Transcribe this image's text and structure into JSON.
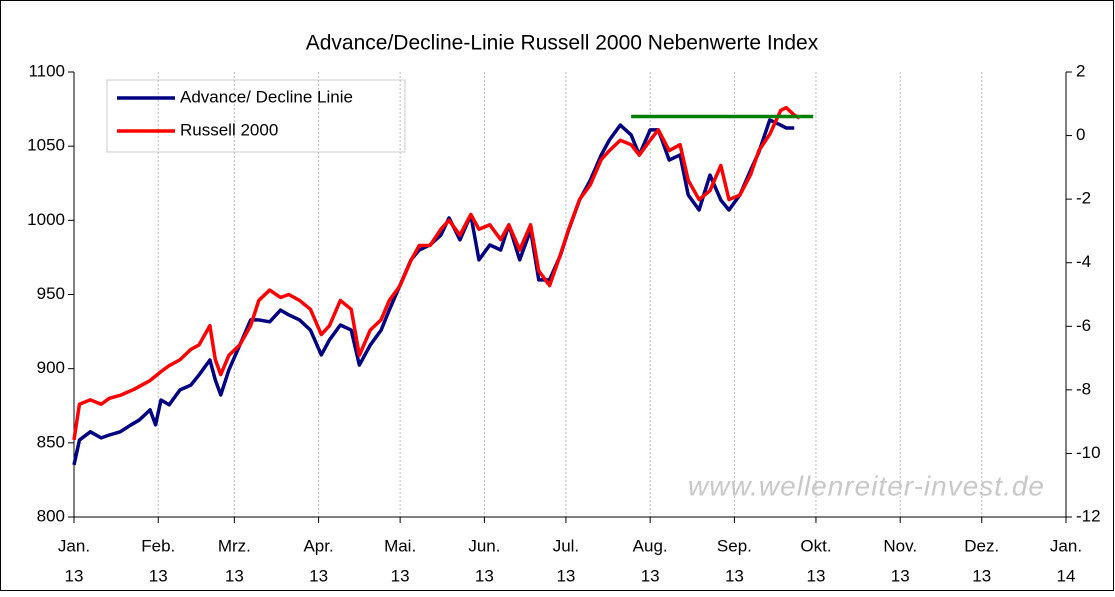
{
  "chart_data": {
    "type": "line",
    "title": "Advance/Decline-Linie Russell 2000 Nebenwerte Index",
    "watermark": "www.wellenreiter-invest.de",
    "xlim": [
      0,
      365
    ],
    "xticks": [
      {
        "value": 0,
        "label": [
          "Jan.",
          "13"
        ]
      },
      {
        "value": 31,
        "label": [
          "Feb.",
          "13"
        ]
      },
      {
        "value": 59,
        "label": [
          "Mrz.",
          "13"
        ]
      },
      {
        "value": 90,
        "label": [
          "Apr.",
          "13"
        ]
      },
      {
        "value": 120,
        "label": [
          "Mai.",
          "13"
        ]
      },
      {
        "value": 151,
        "label": [
          "Jun.",
          "13"
        ]
      },
      {
        "value": 181,
        "label": [
          "Jul.",
          "13"
        ]
      },
      {
        "value": 212,
        "label": [
          "Aug.",
          "13"
        ]
      },
      {
        "value": 243,
        "label": [
          "Sep.",
          "13"
        ]
      },
      {
        "value": 273,
        "label": [
          "Okt.",
          "13"
        ]
      },
      {
        "value": 304,
        "label": [
          "Nov.",
          "13"
        ]
      },
      {
        "value": 334,
        "label": [
          "Dez.",
          "13"
        ]
      },
      {
        "value": 365,
        "label": [
          "Jan.",
          "14"
        ]
      }
    ],
    "ylim": [
      800,
      1100
    ],
    "yticks": [
      800,
      850,
      900,
      950,
      1000,
      1050,
      1100
    ],
    "y2lim": [
      -12,
      2
    ],
    "y2ticks": [
      -12,
      -10,
      -8,
      -6,
      -4,
      -2,
      0,
      2
    ],
    "grid": "x",
    "legend": "top-left",
    "series": [
      {
        "name": "Advance/ Decline Linie",
        "color": "#000080",
        "axis": "y2",
        "x": [
          0,
          2,
          6,
          10,
          13,
          17,
          21,
          24,
          28,
          30,
          32,
          35,
          39,
          43,
          46,
          50,
          52,
          54,
          57,
          61,
          65,
          68,
          72,
          76,
          79,
          83,
          87,
          91,
          94,
          98,
          102,
          105,
          109,
          113,
          116,
          120,
          124,
          127,
          131,
          135,
          138,
          142,
          146,
          149,
          153,
          157,
          160,
          164,
          168,
          171,
          175,
          179,
          182,
          186,
          190,
          194,
          197,
          201,
          205,
          208,
          212,
          215,
          219,
          223,
          226,
          230,
          234,
          238,
          241,
          245,
          249,
          252,
          256,
          260,
          262,
          265
        ],
        "values": [
          -10.36,
          -9.58,
          -9.32,
          -9.51,
          -9.42,
          -9.32,
          -9.1,
          -8.95,
          -8.63,
          -9.1,
          -8.32,
          -8.47,
          -8.0,
          -7.85,
          -7.53,
          -7.06,
          -7.69,
          -8.16,
          -7.37,
          -6.59,
          -5.8,
          -5.8,
          -5.86,
          -5.49,
          -5.64,
          -5.8,
          -6.12,
          -6.9,
          -6.43,
          -5.96,
          -6.12,
          -7.22,
          -6.59,
          -6.12,
          -5.49,
          -4.7,
          -3.91,
          -3.6,
          -3.44,
          -3.13,
          -2.59,
          -3.28,
          -2.5,
          -3.91,
          -3.44,
          -3.6,
          -2.81,
          -3.91,
          -2.97,
          -4.54,
          -4.54,
          -3.76,
          -2.97,
          -2.03,
          -1.4,
          -0.61,
          -0.14,
          0.33,
          0.02,
          -0.61,
          0.18,
          0.18,
          -0.77,
          -0.61,
          -1.87,
          -2.34,
          -1.24,
          -2.03,
          -2.34,
          -1.87,
          -1.08,
          -0.52,
          0.49,
          0.33,
          0.24,
          0.24
        ]
      },
      {
        "name": "Russell 2000",
        "color": "#ff0000",
        "x": [
          0,
          2,
          6,
          10,
          13,
          17,
          22,
          28,
          32,
          35,
          39,
          43,
          46,
          50,
          52,
          54,
          57,
          61,
          65,
          68,
          72,
          76,
          79,
          83,
          87,
          91,
          94,
          98,
          102,
          105,
          109,
          113,
          116,
          120,
          124,
          127,
          131,
          135,
          138,
          142,
          146,
          149,
          153,
          157,
          160,
          164,
          168,
          171,
          175,
          179,
          182,
          186,
          190,
          194,
          197,
          201,
          205,
          208,
          212,
          215,
          219,
          223,
          226,
          230,
          234,
          238,
          241,
          245,
          249,
          252,
          256,
          260,
          262,
          265,
          267
        ],
        "values": [
          852,
          876,
          879,
          876,
          880,
          882,
          886,
          892,
          898,
          902,
          906,
          913,
          916,
          929,
          906,
          896,
          909,
          916,
          929,
          946,
          953,
          948,
          950,
          946,
          940,
          923,
          929,
          946,
          940,
          909,
          926,
          933,
          946,
          956,
          973,
          983,
          983,
          994,
          1000,
          990,
          1004,
          994,
          997,
          987,
          997,
          980,
          997,
          966,
          956,
          977,
          994,
          1014,
          1024,
          1041,
          1047,
          1054,
          1051,
          1044,
          1054,
          1061,
          1047,
          1051,
          1027,
          1014,
          1020,
          1037,
          1014,
          1017,
          1031,
          1047,
          1058,
          1074,
          1076,
          1071,
          1069
        ]
      }
    ],
    "reference_line": {
      "x": [
        205,
        272
      ],
      "value": 1070,
      "color": "#008000"
    }
  }
}
